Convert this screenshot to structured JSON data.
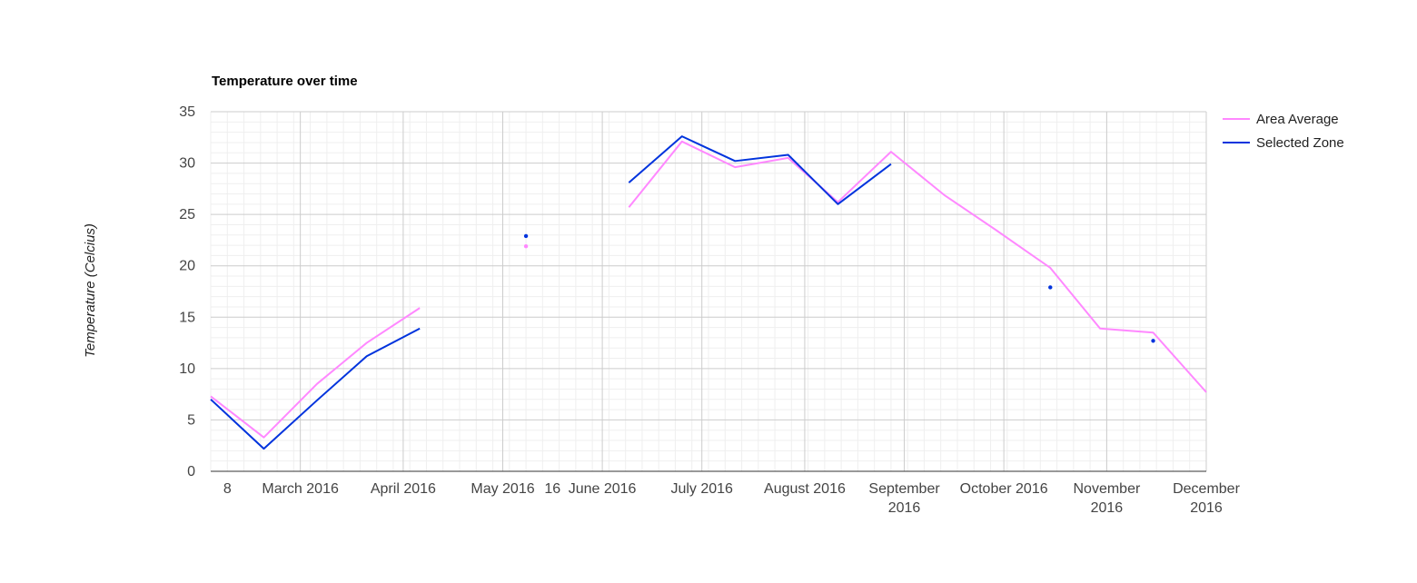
{
  "chart_data": {
    "type": "line",
    "title": "Temperature over time",
    "xlabel": "",
    "ylabel": "Temperature (Celcius)",
    "ylim": [
      0,
      35
    ],
    "y_ticks": [
      0,
      5,
      10,
      15,
      20,
      25,
      30,
      35
    ],
    "x_domain": [
      0,
      300
    ],
    "x_ticks": [
      {
        "x": 5,
        "lines": [
          "8"
        ]
      },
      {
        "x": 27,
        "lines": [
          "March 2016"
        ]
      },
      {
        "x": 58,
        "lines": [
          "April 2016"
        ]
      },
      {
        "x": 88,
        "lines": [
          "May 2016"
        ]
      },
      {
        "x": 103,
        "lines": [
          "16"
        ]
      },
      {
        "x": 118,
        "lines": [
          "June 2016"
        ]
      },
      {
        "x": 148,
        "lines": [
          "July 2016"
        ]
      },
      {
        "x": 179,
        "lines": [
          "August 2016"
        ]
      },
      {
        "x": 209,
        "lines": [
          "September",
          "2016"
        ]
      },
      {
        "x": 239,
        "lines": [
          "October 2016"
        ]
      },
      {
        "x": 270,
        "lines": [
          "November",
          "2016"
        ]
      },
      {
        "x": 300,
        "lines": [
          "December",
          "2016"
        ]
      }
    ],
    "major_gridlines_x": [
      27,
      58,
      88,
      118,
      148,
      179,
      209,
      239,
      270,
      300
    ],
    "grid": true,
    "legend_position": "right",
    "series": [
      {
        "name": "Area Average",
        "color": "#ff88ff",
        "points": [
          {
            "x": 0,
            "y": 7.3
          },
          {
            "x": 16,
            "y": 3.3
          },
          {
            "x": 32,
            "y": 8.5
          },
          {
            "x": 47,
            "y": 12.5
          },
          {
            "x": 63,
            "y": 15.9
          },
          {
            "x": 95,
            "y": 21.9
          },
          {
            "x": 126,
            "y": 25.7
          },
          {
            "x": 142,
            "y": 32.1
          },
          {
            "x": 158,
            "y": 29.6
          },
          {
            "x": 174,
            "y": 30.5
          },
          {
            "x": 189,
            "y": 26.2
          },
          {
            "x": 205,
            "y": 31.1
          },
          {
            "x": 221,
            "y": 26.9
          },
          {
            "x": 237,
            "y": 23.4
          },
          {
            "x": 253,
            "y": 19.8
          },
          {
            "x": 268,
            "y": 13.9
          },
          {
            "x": 284,
            "y": 13.5
          },
          {
            "x": 300,
            "y": 7.7
          }
        ]
      },
      {
        "name": "Selected Zone",
        "color": "#0033dd",
        "points": [
          {
            "x": 0,
            "y": 7.0
          },
          {
            "x": 16,
            "y": 2.2
          },
          {
            "x": 32,
            "y": 6.9
          },
          {
            "x": 47,
            "y": 11.2
          },
          {
            "x": 63,
            "y": 13.9
          },
          {
            "x": 95,
            "y": 22.9
          },
          {
            "x": 126,
            "y": 28.1
          },
          {
            "x": 142,
            "y": 32.6
          },
          {
            "x": 158,
            "y": 30.2
          },
          {
            "x": 174,
            "y": 30.8
          },
          {
            "x": 189,
            "y": 26.0
          },
          {
            "x": 205,
            "y": 29.9
          },
          {
            "x": 253,
            "y": 17.9
          },
          {
            "x": 284,
            "y": 12.7
          }
        ]
      }
    ],
    "segments_note": "Lines connect consecutive points only; isolated points render as dots (gaps in data)."
  }
}
